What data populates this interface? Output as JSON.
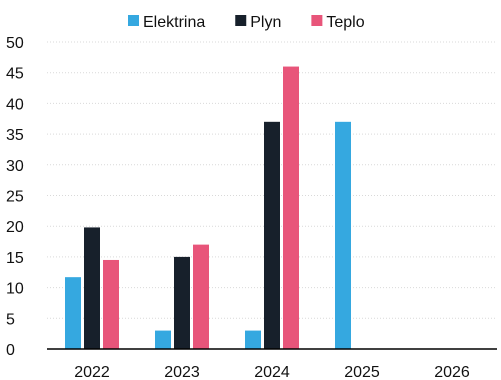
{
  "chart_data": {
    "type": "bar",
    "categories": [
      "2022",
      "2023",
      "2024",
      "2025",
      "2026"
    ],
    "series": [
      {
        "name": "Elektrina",
        "color": "#35a8e0",
        "values": [
          11.7,
          3,
          3,
          37,
          null
        ]
      },
      {
        "name": "Plyn",
        "color": "#17202b",
        "values": [
          19.8,
          15,
          37,
          null,
          null
        ]
      },
      {
        "name": "Teplo",
        "color": "#e8557a",
        "values": [
          14.5,
          17,
          46,
          null,
          null
        ]
      }
    ],
    "ylim": [
      0,
      50
    ],
    "yticks": [
      0,
      5,
      10,
      15,
      20,
      25,
      30,
      35,
      40,
      45,
      50
    ],
    "grid": true,
    "legend_position": "top-center"
  }
}
